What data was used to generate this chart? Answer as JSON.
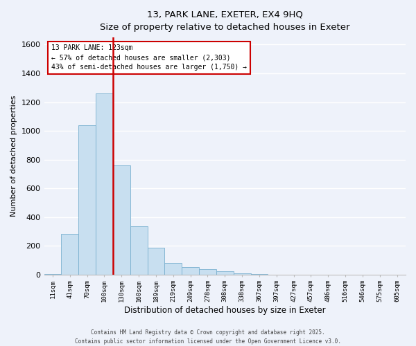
{
  "title_line1": "13, PARK LANE, EXETER, EX4 9HQ",
  "title_line2": "Size of property relative to detached houses in Exeter",
  "xlabel": "Distribution of detached houses by size in Exeter",
  "ylabel": "Number of detached properties",
  "bar_color": "#c8dff0",
  "bar_edge_color": "#7ab0d0",
  "background_color": "#eef2fa",
  "grid_color": "#ffffff",
  "vline_color": "#cc0000",
  "annotation_title": "13 PARK LANE: 123sqm",
  "annotation_line1": "← 57% of detached houses are smaller (2,303)",
  "annotation_line2": "43% of semi-detached houses are larger (1,750) →",
  "annotation_box_color": "#ffffff",
  "annotation_box_edge": "#cc0000",
  "bin_labels": [
    "11sqm",
    "41sqm",
    "70sqm",
    "100sqm",
    "130sqm",
    "160sqm",
    "189sqm",
    "219sqm",
    "249sqm",
    "278sqm",
    "308sqm",
    "338sqm",
    "367sqm",
    "397sqm",
    "427sqm",
    "457sqm",
    "486sqm",
    "516sqm",
    "546sqm",
    "575sqm",
    "605sqm"
  ],
  "bar_heights": [
    5,
    280,
    1040,
    1260,
    760,
    335,
    185,
    80,
    52,
    38,
    20,
    7,
    2,
    0,
    0,
    0,
    0,
    0,
    0,
    0,
    0
  ],
  "ylim": [
    0,
    1650
  ],
  "yticks": [
    0,
    200,
    400,
    600,
    800,
    1000,
    1200,
    1400,
    1600
  ],
  "vline_bar_index": 3,
  "footnote_line1": "Contains HM Land Registry data © Crown copyright and database right 2025.",
  "footnote_line2": "Contains public sector information licensed under the Open Government Licence v3.0."
}
